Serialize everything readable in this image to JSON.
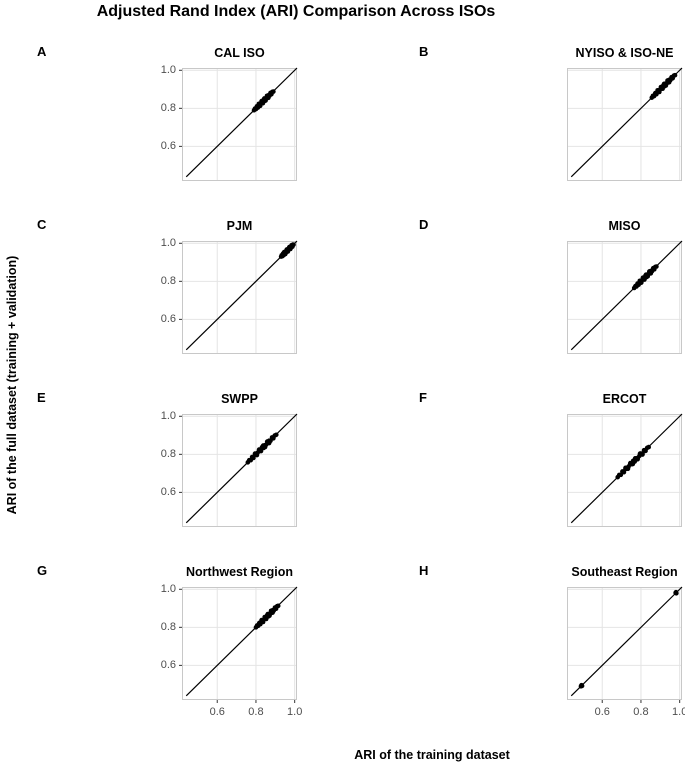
{
  "figure": {
    "title": "Adjusted Rand Index (ARI) Comparison Across ISOs",
    "x_axis_label": "ARI of the training dataset",
    "y_axis_label": "ARI of the full dataset (training + validation)"
  },
  "colors": {
    "background": "#ffffff",
    "point": "#000000",
    "line": "#000000",
    "grid": "#e4e4e4",
    "panel_border": "#c8c8c8",
    "tick_mark": "#333333",
    "tick_text": "#4d4d4d",
    "title_text": "#000000"
  },
  "chart_data": {
    "type": "scatter",
    "title": "Adjusted Rand Index (ARI) Comparison Across ISOs",
    "xlabel": "ARI of the training dataset",
    "ylabel": "ARI of the full dataset (training + validation)",
    "facets": "4 rows x 2 cols",
    "legend": "none",
    "grid": "major only at ticks",
    "axis": {
      "min": 0.418,
      "max": 1.012,
      "ticks": [
        0.6,
        0.8,
        1.0
      ],
      "tick_labels": [
        "0.6",
        "0.8",
        "1.0"
      ]
    },
    "identity_line": {
      "from": 0.44,
      "to": 1.012,
      "note": "y = x reference line in every panel"
    },
    "panels": [
      {
        "label": "A",
        "title": "CAL ISO",
        "cluster_range": [
          0.79,
          0.89
        ],
        "points": [
          [
            0.79,
            0.79
          ],
          [
            0.795,
            0.799
          ],
          [
            0.8,
            0.796
          ],
          [
            0.805,
            0.811
          ],
          [
            0.81,
            0.804
          ],
          [
            0.815,
            0.817
          ],
          [
            0.82,
            0.818
          ],
          [
            0.825,
            0.825
          ],
          [
            0.83,
            0.834
          ],
          [
            0.835,
            0.831
          ],
          [
            0.84,
            0.846
          ],
          [
            0.845,
            0.839
          ],
          [
            0.85,
            0.852
          ],
          [
            0.855,
            0.853
          ],
          [
            0.86,
            0.86
          ],
          [
            0.865,
            0.869
          ],
          [
            0.87,
            0.866
          ],
          [
            0.875,
            0.881
          ],
          [
            0.88,
            0.874
          ],
          [
            0.885,
            0.887
          ],
          [
            0.89,
            0.888
          ],
          [
            0.815,
            0.824
          ],
          [
            0.822,
            0.813
          ],
          [
            0.829,
            0.838
          ],
          [
            0.836,
            0.827
          ],
          [
            0.843,
            0.852
          ],
          [
            0.85,
            0.841
          ],
          [
            0.857,
            0.866
          ],
          [
            0.864,
            0.855
          ]
        ]
      },
      {
        "label": "B",
        "title": "NYISO & ISO-NE",
        "cluster_range": [
          0.86,
          0.98
        ],
        "points": [
          [
            0.856,
            0.856
          ],
          [
            0.862,
            0.866
          ],
          [
            0.868,
            0.864
          ],
          [
            0.874,
            0.88
          ],
          [
            0.88,
            0.874
          ],
          [
            0.886,
            0.888
          ],
          [
            0.892,
            0.89
          ],
          [
            0.898,
            0.898
          ],
          [
            0.904,
            0.908
          ],
          [
            0.91,
            0.906
          ],
          [
            0.916,
            0.922
          ],
          [
            0.922,
            0.916
          ],
          [
            0.928,
            0.93
          ],
          [
            0.934,
            0.932
          ],
          [
            0.94,
            0.94
          ],
          [
            0.946,
            0.95
          ],
          [
            0.952,
            0.948
          ],
          [
            0.958,
            0.964
          ],
          [
            0.964,
            0.958
          ],
          [
            0.97,
            0.972
          ],
          [
            0.976,
            0.974
          ],
          [
            0.886,
            0.895
          ],
          [
            0.895,
            0.886
          ],
          [
            0.903,
            0.912
          ],
          [
            0.912,
            0.903
          ],
          [
            0.92,
            0.929
          ],
          [
            0.929,
            0.92
          ],
          [
            0.937,
            0.946
          ],
          [
            0.946,
            0.937
          ]
        ]
      },
      {
        "label": "C",
        "title": "PJM",
        "cluster_range": [
          0.93,
          0.99
        ],
        "points": [
          [
            0.93,
            0.93
          ],
          [
            0.933,
            0.937
          ],
          [
            0.936,
            0.932
          ],
          [
            0.94,
            0.946
          ],
          [
            0.943,
            0.937
          ],
          [
            0.946,
            0.948
          ],
          [
            0.949,
            0.947
          ],
          [
            0.952,
            0.952
          ],
          [
            0.956,
            0.96
          ],
          [
            0.959,
            0.955
          ],
          [
            0.962,
            0.968
          ],
          [
            0.965,
            0.959
          ],
          [
            0.968,
            0.97
          ],
          [
            0.972,
            0.97
          ],
          [
            0.975,
            0.975
          ],
          [
            0.978,
            0.982
          ],
          [
            0.981,
            0.977
          ],
          [
            0.984,
            0.99
          ],
          [
            0.988,
            0.982
          ],
          [
            0.991,
            0.993
          ],
          [
            0.994,
            0.992
          ],
          [
            0.946,
            0.954
          ],
          [
            0.952,
            0.944
          ],
          [
            0.959,
            0.967
          ],
          [
            0.965,
            0.957
          ],
          [
            0.972,
            0.98
          ],
          [
            0.978,
            0.97
          ]
        ]
      },
      {
        "label": "D",
        "title": "MISO",
        "cluster_range": [
          0.77,
          0.88
        ],
        "points": [
          [
            0.765,
            0.765
          ],
          [
            0.771,
            0.775
          ],
          [
            0.777,
            0.773
          ],
          [
            0.782,
            0.788
          ],
          [
            0.788,
            0.782
          ],
          [
            0.794,
            0.796
          ],
          [
            0.8,
            0.798
          ],
          [
            0.805,
            0.805
          ],
          [
            0.811,
            0.815
          ],
          [
            0.817,
            0.813
          ],
          [
            0.823,
            0.829
          ],
          [
            0.828,
            0.822
          ],
          [
            0.834,
            0.836
          ],
          [
            0.84,
            0.838
          ],
          [
            0.846,
            0.846
          ],
          [
            0.851,
            0.855
          ],
          [
            0.857,
            0.853
          ],
          [
            0.863,
            0.869
          ],
          [
            0.869,
            0.863
          ],
          [
            0.874,
            0.876
          ],
          [
            0.88,
            0.878
          ],
          [
            0.794,
            0.803
          ],
          [
            0.802,
            0.793
          ],
          [
            0.81,
            0.819
          ],
          [
            0.818,
            0.809
          ],
          [
            0.826,
            0.835
          ],
          [
            0.835,
            0.826
          ],
          [
            0.843,
            0.852
          ],
          [
            0.851,
            0.842
          ]
        ]
      },
      {
        "label": "E",
        "title": "SWPP",
        "cluster_range": [
          0.76,
          0.9
        ],
        "points": [
          [
            0.758,
            0.758
          ],
          [
            0.765,
            0.769
          ],
          [
            0.773,
            0.769
          ],
          [
            0.78,
            0.786
          ],
          [
            0.787,
            0.781
          ],
          [
            0.795,
            0.797
          ],
          [
            0.802,
            0.8
          ],
          [
            0.809,
            0.809
          ],
          [
            0.817,
            0.821
          ],
          [
            0.824,
            0.82
          ],
          [
            0.831,
            0.837
          ],
          [
            0.839,
            0.833
          ],
          [
            0.846,
            0.848
          ],
          [
            0.853,
            0.851
          ],
          [
            0.861,
            0.861
          ],
          [
            0.868,
            0.872
          ],
          [
            0.875,
            0.871
          ],
          [
            0.883,
            0.889
          ],
          [
            0.89,
            0.884
          ],
          [
            0.897,
            0.899
          ],
          [
            0.905,
            0.903
          ],
          [
            0.795,
            0.804
          ],
          [
            0.805,
            0.796
          ],
          [
            0.816,
            0.825
          ],
          [
            0.826,
            0.817
          ],
          [
            0.837,
            0.846
          ],
          [
            0.847,
            0.838
          ],
          [
            0.858,
            0.867
          ],
          [
            0.868,
            0.859
          ]
        ]
      },
      {
        "label": "F",
        "title": "ERCOT",
        "cluster_range": [
          0.68,
          0.84
        ],
        "points": [
          [
            0.68,
            0.68
          ],
          [
            0.688,
            0.692
          ],
          [
            0.696,
            0.692
          ],
          [
            0.704,
            0.71
          ],
          [
            0.712,
            0.706
          ],
          [
            0.72,
            0.722
          ],
          [
            0.728,
            0.726
          ],
          [
            0.736,
            0.736
          ],
          [
            0.744,
            0.748
          ],
          [
            0.752,
            0.748
          ],
          [
            0.76,
            0.766
          ],
          [
            0.768,
            0.762
          ],
          [
            0.776,
            0.778
          ],
          [
            0.784,
            0.782
          ],
          [
            0.792,
            0.792
          ],
          [
            0.8,
            0.804
          ],
          [
            0.808,
            0.804
          ],
          [
            0.816,
            0.822
          ],
          [
            0.824,
            0.818
          ],
          [
            0.832,
            0.834
          ],
          [
            0.84,
            0.838
          ],
          [
            0.72,
            0.729
          ],
          [
            0.733,
            0.724
          ],
          [
            0.745,
            0.754
          ],
          [
            0.758,
            0.749
          ],
          [
            0.77,
            0.779
          ],
          [
            0.783,
            0.774
          ],
          [
            0.795,
            0.804
          ],
          [
            0.808,
            0.799
          ]
        ]
      },
      {
        "label": "G",
        "title": "Northwest Region",
        "cluster_range": [
          0.8,
          0.92
        ],
        "points": [
          [
            0.8,
            0.8
          ],
          [
            0.806,
            0.81
          ],
          [
            0.812,
            0.808
          ],
          [
            0.817,
            0.823
          ],
          [
            0.823,
            0.817
          ],
          [
            0.829,
            0.831
          ],
          [
            0.835,
            0.833
          ],
          [
            0.84,
            0.84
          ],
          [
            0.846,
            0.85
          ],
          [
            0.852,
            0.848
          ],
          [
            0.858,
            0.864
          ],
          [
            0.863,
            0.857
          ],
          [
            0.869,
            0.871
          ],
          [
            0.875,
            0.873
          ],
          [
            0.881,
            0.881
          ],
          [
            0.886,
            0.89
          ],
          [
            0.892,
            0.888
          ],
          [
            0.898,
            0.904
          ],
          [
            0.904,
            0.898
          ],
          [
            0.909,
            0.911
          ],
          [
            0.915,
            0.913
          ],
          [
            0.829,
            0.838
          ],
          [
            0.837,
            0.828
          ],
          [
            0.845,
            0.854
          ],
          [
            0.853,
            0.844
          ],
          [
            0.861,
            0.87
          ],
          [
            0.87,
            0.861
          ],
          [
            0.878,
            0.887
          ],
          [
            0.886,
            0.877
          ]
        ]
      },
      {
        "label": "H",
        "title": "Southeast Region",
        "cluster_range": [
          0.49,
          0.99
        ],
        "points": [
          [
            0.49,
            0.49
          ],
          [
            0.493,
            0.496
          ],
          [
            0.496,
            0.492
          ],
          [
            0.979,
            0.981
          ],
          [
            0.983,
            0.979
          ],
          [
            0.981,
            0.985
          ]
        ]
      }
    ]
  }
}
